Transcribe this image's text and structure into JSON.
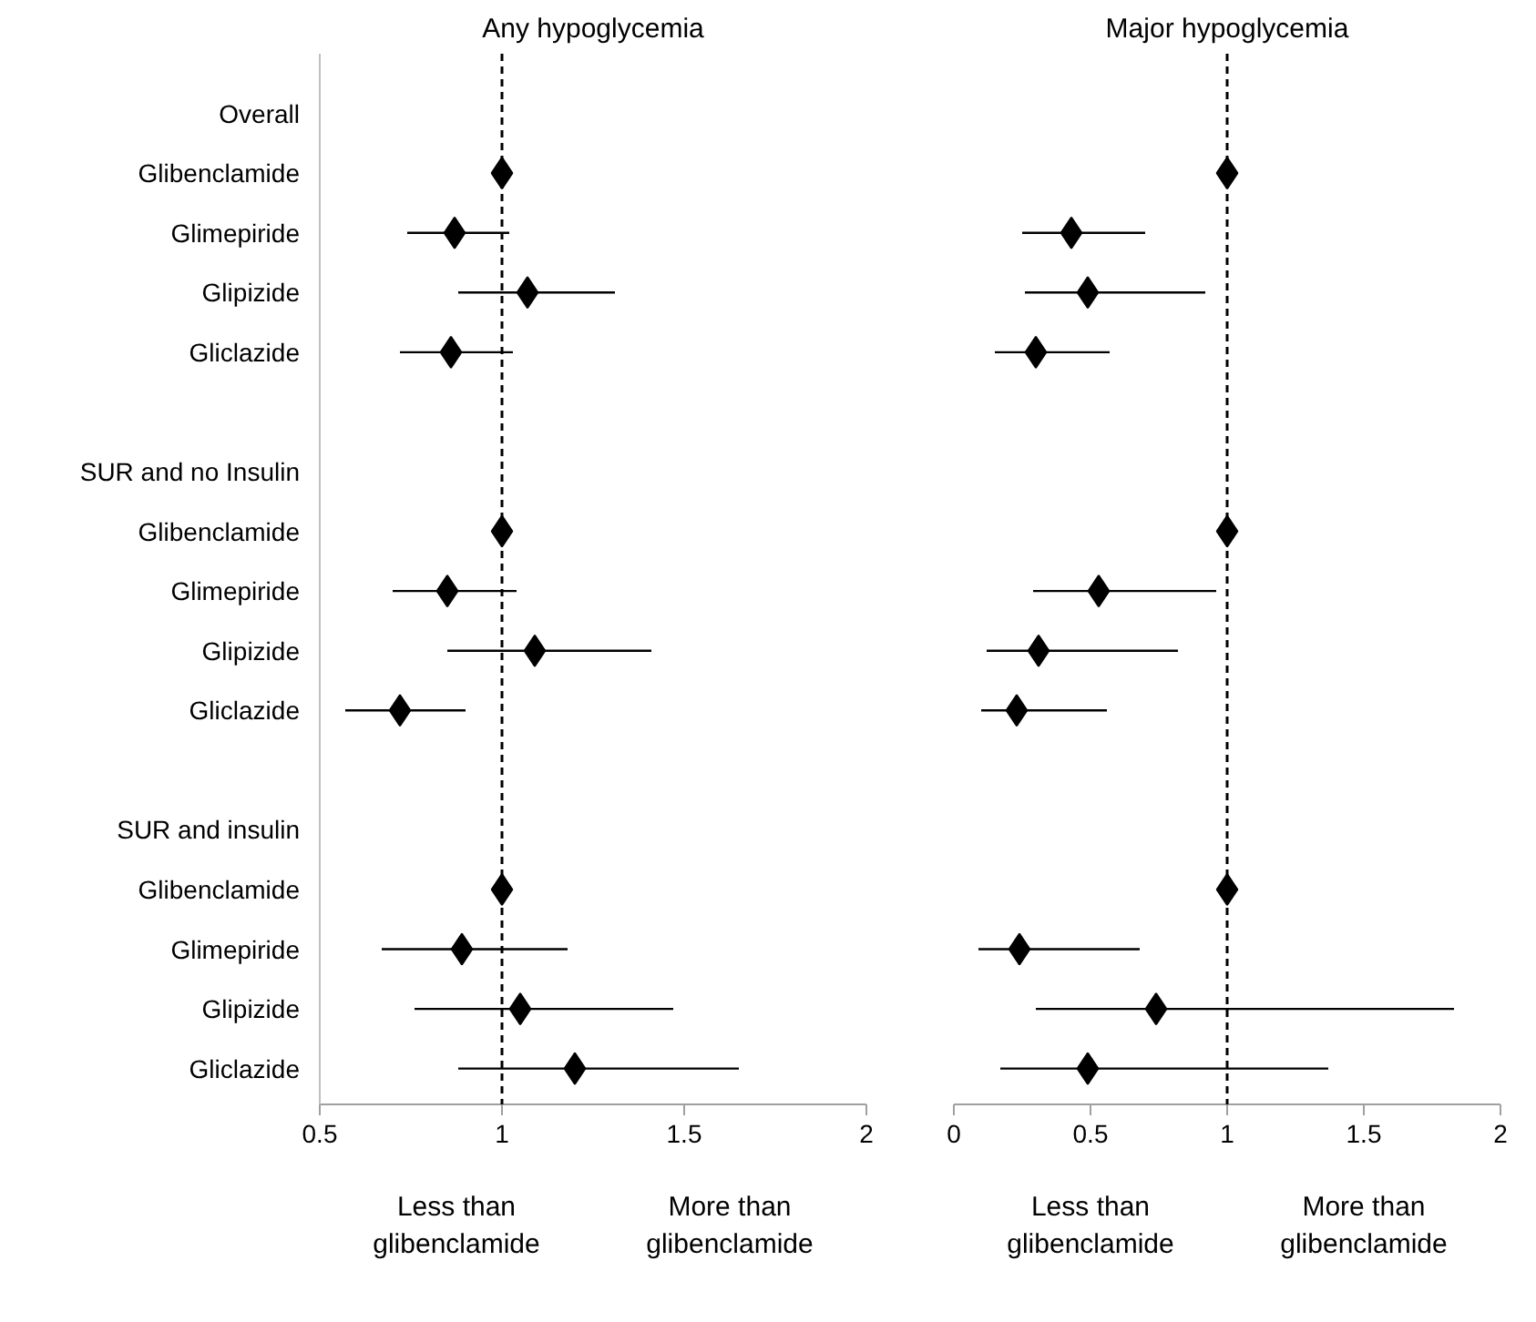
{
  "chart_data": [
    {
      "type": "scatter",
      "orientation": "horizontal",
      "title": "Any hypoglycemia",
      "marker": "diamond",
      "color": "#000000",
      "categories": [
        "Overall",
        "Glibenclamide",
        "Glimepiride",
        "Glipizide",
        "Gliclazide",
        null,
        "SUR and no Insulin",
        "Glibenclamide",
        "Glimepiride",
        "Glipizide",
        "Gliclazide",
        null,
        "SUR and insulin",
        "Glibenclamide",
        "Glimepiride",
        "Glipizide",
        "Gliclazide"
      ],
      "values": [
        null,
        1,
        0.87,
        1.07,
        0.86,
        null,
        null,
        1,
        0.85,
        1.09,
        0.72,
        null,
        null,
        1,
        0.89,
        1.05,
        1.2
      ],
      "errors": [
        null,
        null,
        [
          0.74,
          1.02
        ],
        [
          0.88,
          1.31
        ],
        [
          0.72,
          1.03
        ],
        null,
        null,
        null,
        [
          0.7,
          1.04
        ],
        [
          0.85,
          1.41
        ],
        [
          0.57,
          0.9
        ],
        null,
        null,
        null,
        [
          0.67,
          1.18
        ],
        [
          0.76,
          1.47
        ],
        [
          0.88,
          1.65
        ]
      ],
      "xlim": [
        0.5,
        2
      ],
      "xticks": [
        0.5,
        1,
        1.5,
        2
      ],
      "ref_lines": [
        {
          "axis": "x",
          "value": 1,
          "line_style": "dashed",
          "color": "#000000"
        }
      ],
      "annotations": [
        "Less than glibenclamide",
        "More than glibenclamide"
      ]
    },
    {
      "type": "scatter",
      "orientation": "horizontal",
      "title": "Major hypoglycemia",
      "marker": "diamond",
      "color": "#000000",
      "tick_labels": "x",
      "categories": [
        null,
        null,
        null,
        null,
        null,
        null,
        null,
        null,
        null,
        null,
        null,
        null,
        null,
        null,
        null,
        null,
        null
      ],
      "values": [
        null,
        1,
        0.43,
        0.49,
        0.3,
        null,
        null,
        1,
        0.53,
        0.31,
        0.23,
        null,
        null,
        1,
        0.24,
        0.74,
        0.49
      ],
      "errors": [
        null,
        null,
        [
          0.25,
          0.7
        ],
        [
          0.26,
          0.92
        ],
        [
          0.15,
          0.57
        ],
        null,
        null,
        null,
        [
          0.29,
          0.96
        ],
        [
          0.12,
          0.82
        ],
        [
          0.1,
          0.56
        ],
        null,
        null,
        null,
        [
          0.09,
          0.68
        ],
        [
          0.3,
          1.83
        ],
        [
          0.17,
          1.37
        ]
      ],
      "xlim": [
        0,
        2
      ],
      "xticks": [
        0,
        0.5,
        1,
        1.5,
        2
      ],
      "ref_lines": [
        {
          "axis": "x",
          "value": 1,
          "line_style": "dashed",
          "color": "#000000"
        }
      ],
      "annotations": [
        "Less than glibenclamide",
        "More than glibenclamide"
      ]
    }
  ]
}
